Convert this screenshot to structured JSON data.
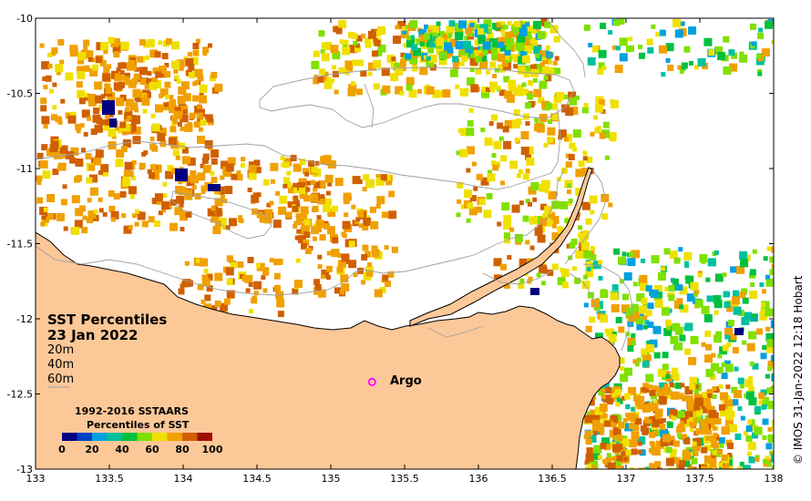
{
  "map": {
    "lon_range": [
      133,
      138
    ],
    "lat_range": [
      -13,
      -10
    ],
    "x_ticks": [
      "133",
      "133.5",
      "134",
      "134.5",
      "135",
      "135.5",
      "136",
      "136.5",
      "137",
      "137.5",
      "138"
    ],
    "y_ticks": [
      "-10",
      "-10.5",
      "-11",
      "-11.5",
      "-12",
      "-12.5",
      "-13"
    ],
    "land_color": "#fdc898",
    "coast_color": "#000000",
    "contour_color": "#a0a0a0"
  },
  "title": {
    "line1": "SST Percentiles",
    "line2": "23 Jan 2022"
  },
  "depths": [
    "20m",
    "40m",
    "60m"
  ],
  "legend": {
    "line1": "1992-2016 SSTAARS",
    "line2": "Percentiles of SST",
    "tick_labels": [
      "0",
      "20",
      "40",
      "60",
      "80",
      "100"
    ],
    "colors": [
      "#000080",
      "#0040c0",
      "#00a0e0",
      "#00c0a0",
      "#00c040",
      "#80e000",
      "#f0e000",
      "#f0a000",
      "#d06000",
      "#a01000"
    ]
  },
  "argo": {
    "label": "Argo",
    "lon": 135.28,
    "lat": -12.42,
    "color": "#ff00ff"
  },
  "credit": "© IMOS 31-Jan-2022 12:18 Hobart"
}
